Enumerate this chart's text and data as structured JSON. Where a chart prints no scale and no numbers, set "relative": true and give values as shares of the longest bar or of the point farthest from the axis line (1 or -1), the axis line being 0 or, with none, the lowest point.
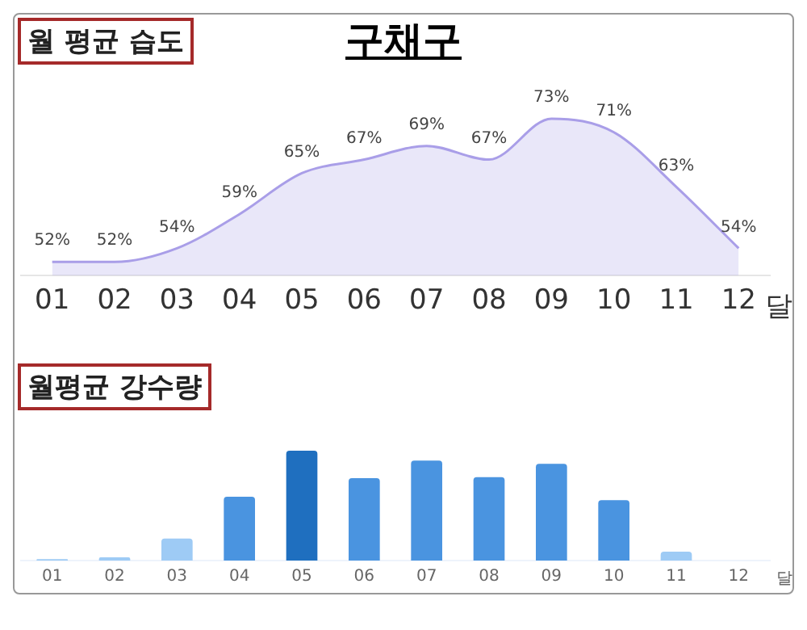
{
  "chart_data": [
    {
      "type": "area",
      "title": "구채구",
      "subtitle": "월 평균 습도",
      "xlabel": "달",
      "categories": [
        "01",
        "02",
        "03",
        "04",
        "05",
        "06",
        "07",
        "08",
        "09",
        "10",
        "11",
        "12"
      ],
      "series": [
        {
          "color": "#a99ee8",
          "values": [
            52,
            52,
            54,
            59,
            65,
            67,
            69,
            67,
            73,
            71,
            63,
            54
          ],
          "value_labels": [
            "52%",
            "52%",
            "54%",
            "59%",
            "65%",
            "67%",
            "69%",
            "67%",
            "73%",
            "71%",
            "63%",
            "54%"
          ]
        }
      ],
      "tick_labels": "x",
      "grid": false,
      "legend": false
    },
    {
      "type": "bar",
      "subtitle": "월평균 강수량",
      "xlabel": "달",
      "relative": true,
      "categories": [
        "01",
        "02",
        "03",
        "04",
        "05",
        "06",
        "07",
        "08",
        "09",
        "10",
        "11",
        "12"
      ],
      "values": [
        0.012,
        0.03,
        0.2,
        0.58,
        1,
        0.75,
        0.91,
        0.76,
        0.88,
        0.55,
        0.08,
        0
      ],
      "colors": [
        "#9ecbf5",
        "#9ecbf5",
        "#9ecbf5",
        "#4a94e0",
        "#1f6fbf",
        "#4a94e0",
        "#4a94e0",
        "#4a94e0",
        "#4a94e0",
        "#4a94e0",
        "#9ecbf5",
        "#9ecbf5"
      ],
      "grid": false,
      "legend": false
    }
  ]
}
